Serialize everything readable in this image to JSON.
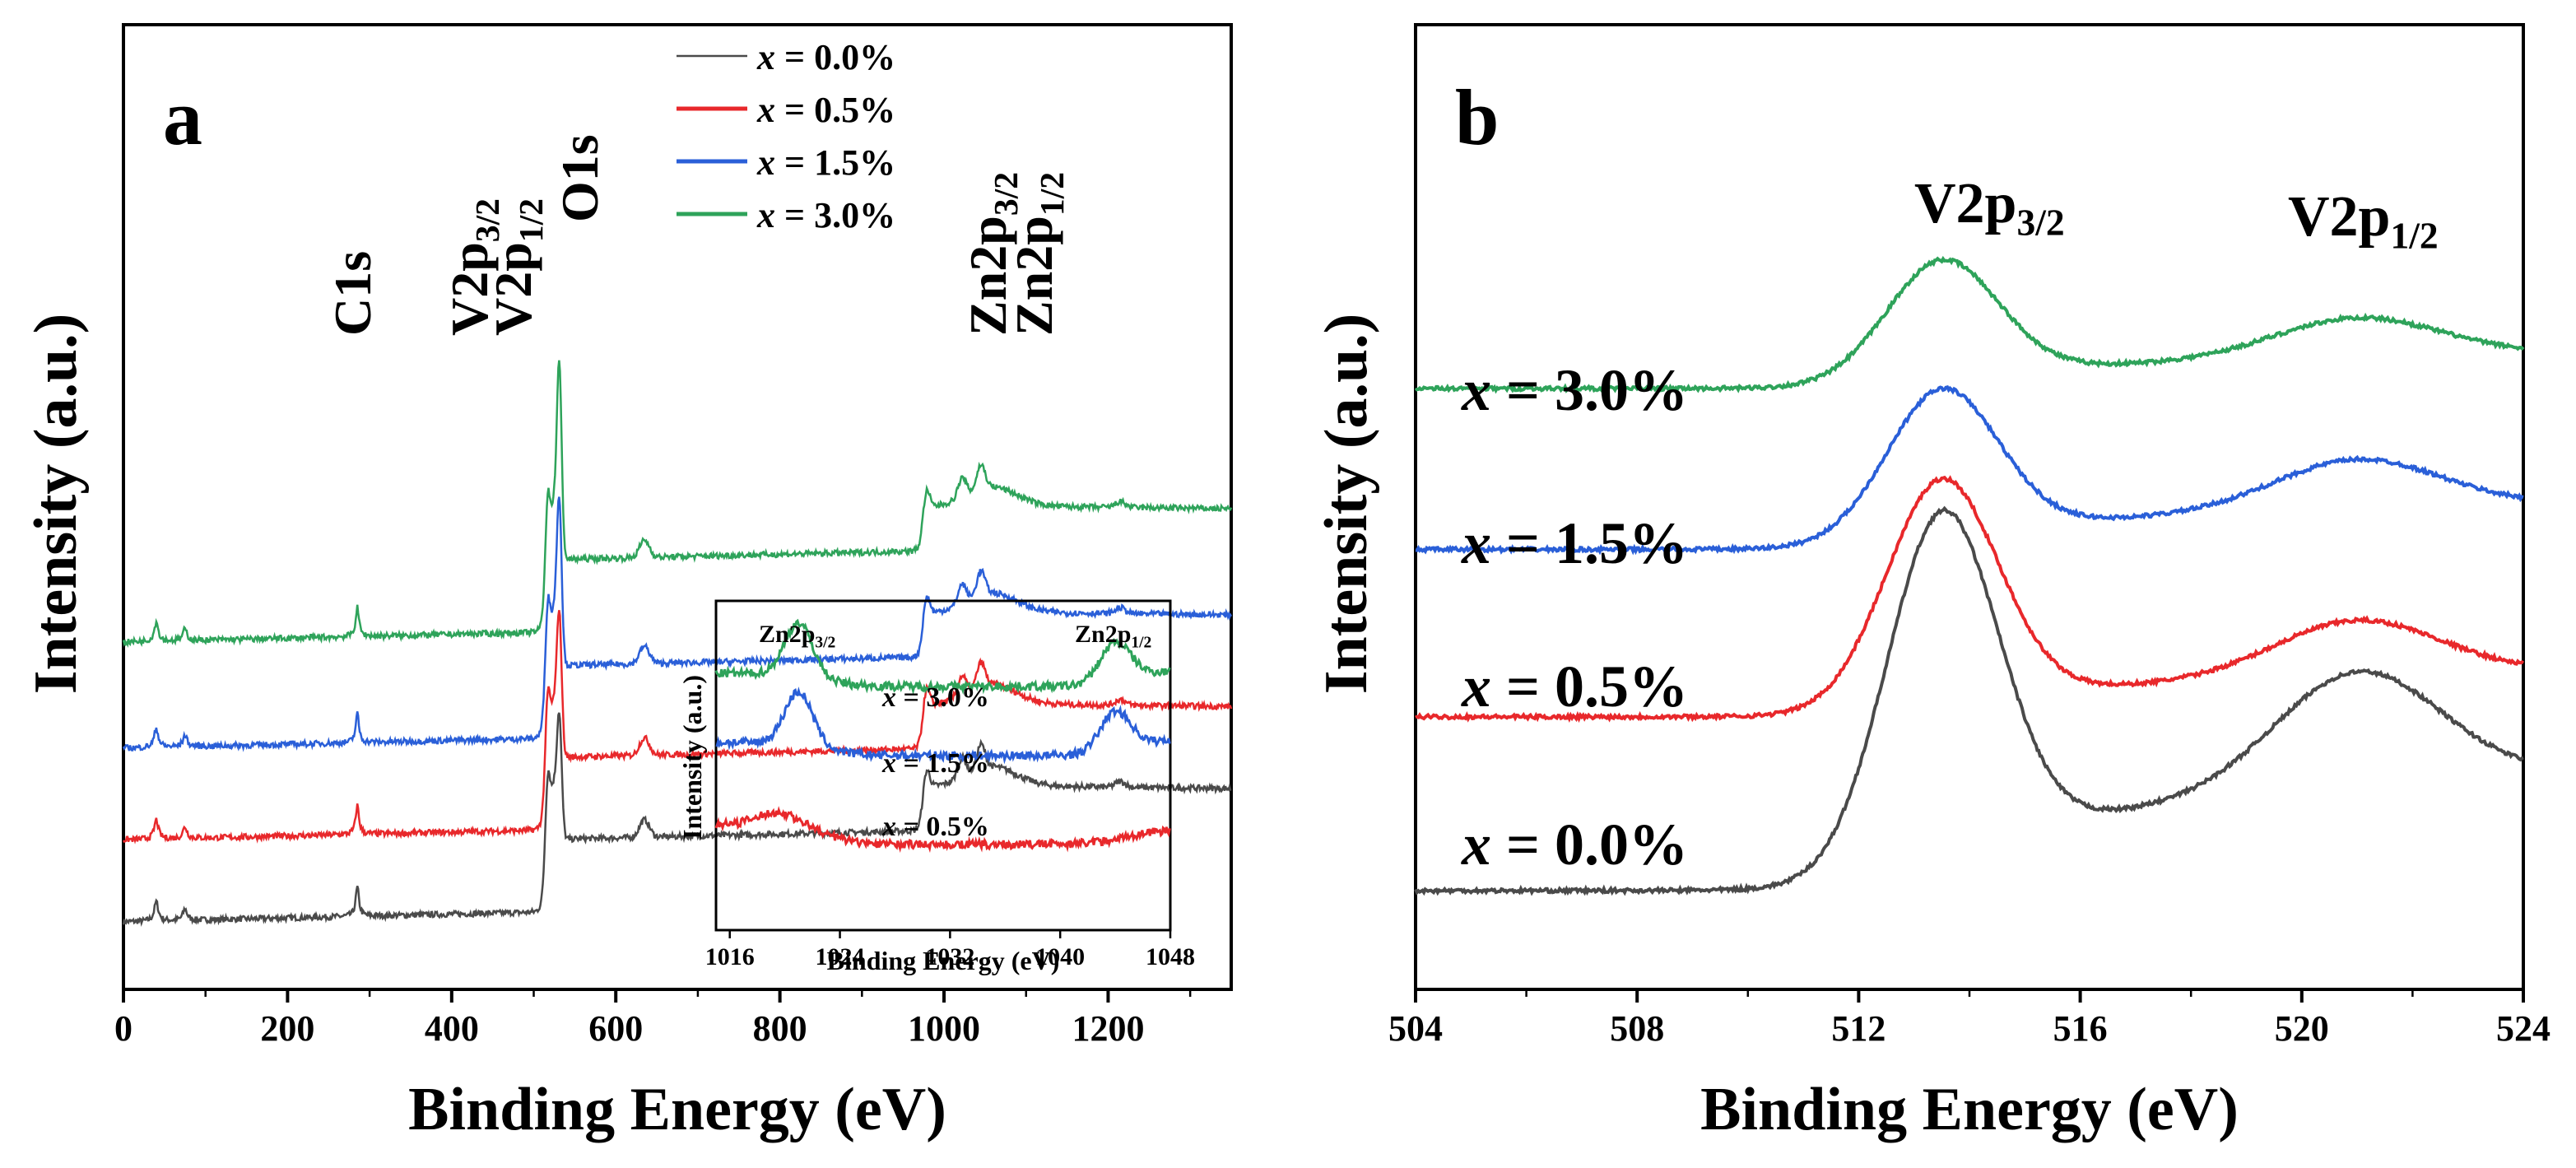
{
  "chart_data": [
    {
      "panel": "a",
      "type": "line",
      "xlabel": "Binding Energy (eV)",
      "ylabel": "Intensity (a.u.)",
      "xlim": [
        0,
        1350
      ],
      "xticks": [
        0,
        200,
        400,
        600,
        800,
        1000,
        1200
      ],
      "legend": {
        "position": "top-right",
        "prefix": "x",
        "entries": [
          "= 0.0%",
          "= 0.5%",
          "= 1.5%",
          "= 3.0%"
        ]
      },
      "annotations": [
        {
          "main": "C1s",
          "sub": "",
          "x": 285
        },
        {
          "main": "V2p",
          "sub": "3/2",
          "x": 515
        },
        {
          "main": "V2p",
          "sub": "1/2",
          "x": 522
        },
        {
          "main": "O1s",
          "sub": "",
          "x": 531
        },
        {
          "main": "Zn2p",
          "sub": "3/2",
          "x": 1022
        },
        {
          "main": "Zn2p",
          "sub": "1/2",
          "x": 1045
        }
      ],
      "series": [
        {
          "name": "x = 0.0%",
          "color": "#4a4a4a",
          "offset": 0.0
        },
        {
          "name": "x = 0.5%",
          "color": "#e8282b",
          "offset": 0.085
        },
        {
          "name": "x = 1.5%",
          "color": "#2a5fd8",
          "offset": 0.18
        },
        {
          "name": "x = 3.0%",
          "color": "#2ea35a",
          "offset": 0.29
        }
      ],
      "inset": {
        "xlabel": "Binding Energy (eV)",
        "ylabel": "Intensity (a.u.)",
        "xlim": [
          1015,
          1048
        ],
        "xticks": [
          1016,
          1024,
          1032,
          1040,
          1048
        ],
        "peak_labels": [
          {
            "main": "Zn2p",
            "sub": "3/2",
            "x": 1021
          },
          {
            "main": "Zn2p",
            "sub": "1/2",
            "x": 1044
          }
        ],
        "series_labels": [
          {
            "prefix": "x",
            "text": "= 3.0%",
            "color": "#2ea35a"
          },
          {
            "prefix": "x",
            "text": "= 1.5%",
            "color": "#2a5fd8"
          },
          {
            "prefix": "x",
            "text": "= 0.5%",
            "color": "#e8282b"
          }
        ]
      }
    },
    {
      "panel": "b",
      "type": "line",
      "xlabel": "Binding Energy (eV)",
      "ylabel": "Intensity (a.u.)",
      "xlim": [
        504,
        524
      ],
      "xticks": [
        504,
        508,
        512,
        516,
        520,
        524
      ],
      "peak_labels": [
        {
          "main": "V2p",
          "sub": "3/2",
          "x": 513.5
        },
        {
          "main": "V2p",
          "sub": "1/2",
          "x": 521.0
        }
      ],
      "series": [
        {
          "name": "x = 0.0%",
          "prefix": "x",
          "text": "= 0.0%",
          "color": "#4a4a4a",
          "baseline": 0.0,
          "peak1": 0.59,
          "peak2": 0.34,
          "end": 0.23
        },
        {
          "name": "x = 0.5%",
          "prefix": "x",
          "text": "= 0.5%",
          "color": "#e8282b",
          "baseline": 0.27,
          "peak1": 0.64,
          "peak2": 0.42,
          "end": 0.36
        },
        {
          "name": "x = 1.5%",
          "prefix": "x",
          "text": "= 1.5%",
          "color": "#2a5fd8",
          "baseline": 0.53,
          "peak1": 0.78,
          "peak2": 0.67,
          "end": 0.62
        },
        {
          "name": "x = 3.0%",
          "prefix": "x",
          "text": "= 3.0%",
          "color": "#2ea35a",
          "baseline": 0.78,
          "peak1": 0.98,
          "peak2": 0.89,
          "end": 0.85
        }
      ]
    }
  ]
}
